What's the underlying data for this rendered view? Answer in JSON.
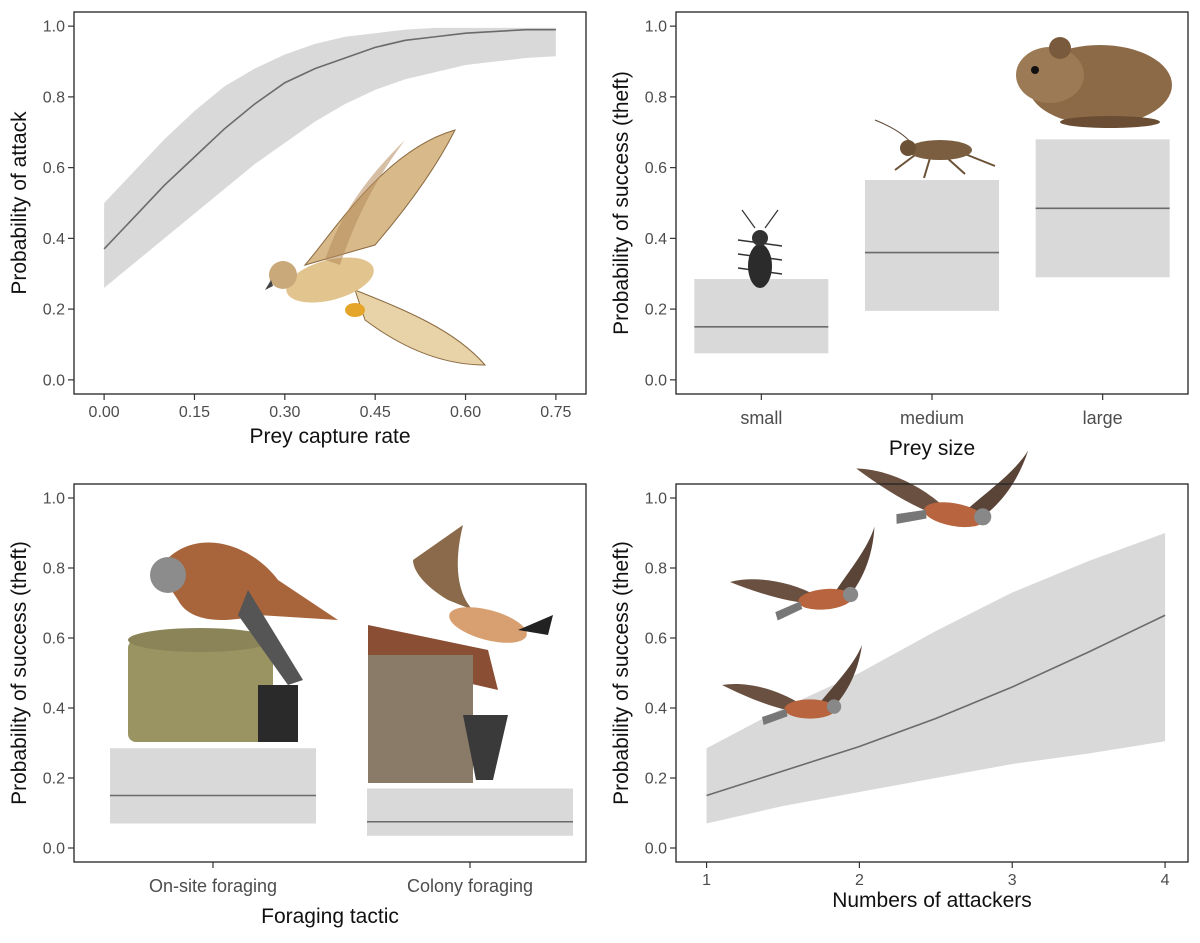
{
  "chart_data": [
    {
      "id": "capture",
      "type": "line",
      "xlabel": "Prey capture rate",
      "ylabel": "Probability of attack",
      "xlim": [
        -0.05,
        0.8
      ],
      "ylim": [
        -0.04,
        1.04
      ],
      "xticks": [
        "0.00",
        "0.15",
        "0.30",
        "0.45",
        "0.60",
        "0.75"
      ],
      "yticks": [
        "0.0",
        "0.2",
        "0.4",
        "0.6",
        "0.8",
        "1.0"
      ],
      "x": [
        0.0,
        0.05,
        0.1,
        0.15,
        0.2,
        0.25,
        0.3,
        0.35,
        0.4,
        0.45,
        0.5,
        0.55,
        0.6,
        0.65,
        0.7,
        0.75
      ],
      "fit": [
        0.37,
        0.46,
        0.55,
        0.63,
        0.71,
        0.78,
        0.84,
        0.88,
        0.91,
        0.94,
        0.96,
        0.97,
        0.98,
        0.985,
        0.99,
        0.99
      ],
      "lower": [
        0.26,
        0.33,
        0.4,
        0.47,
        0.54,
        0.61,
        0.67,
        0.73,
        0.78,
        0.82,
        0.85,
        0.87,
        0.89,
        0.9,
        0.91,
        0.915
      ],
      "upper": [
        0.5,
        0.59,
        0.68,
        0.76,
        0.83,
        0.88,
        0.92,
        0.95,
        0.97,
        0.98,
        0.99,
        0.995,
        0.995,
        0.995,
        0.995,
        0.995
      ],
      "image_icon": "kestrel-hovering-icon"
    },
    {
      "id": "preysize",
      "type": "bar",
      "xlabel": "Prey size",
      "ylabel": "Probability of success (theft)",
      "ylim": [
        -0.04,
        1.04
      ],
      "yticks": [
        "0.0",
        "0.2",
        "0.4",
        "0.6",
        "0.8",
        "1.0"
      ],
      "categories": [
        "small",
        "medium",
        "large"
      ],
      "estimate": [
        0.15,
        0.36,
        0.485
      ],
      "lower": [
        0.075,
        0.195,
        0.29
      ],
      "upper": [
        0.285,
        0.565,
        0.68
      ],
      "image_icons": [
        "beetle-icon",
        "cricket-icon",
        "vole-icon"
      ]
    },
    {
      "id": "tactic",
      "type": "bar",
      "xlabel": "Foraging tactic",
      "ylabel": "Probability of success (theft)",
      "ylim": [
        -0.04,
        1.04
      ],
      "yticks": [
        "0.0",
        "0.2",
        "0.4",
        "0.6",
        "0.8",
        "1.0"
      ],
      "categories": [
        "On-site foraging",
        "Colony foraging"
      ],
      "estimate": [
        0.15,
        0.075
      ],
      "lower": [
        0.07,
        0.035
      ],
      "upper": [
        0.285,
        0.17
      ],
      "image_icons": [
        "kestrel-on-post-icon",
        "kestrel-over-roof-icon"
      ]
    },
    {
      "id": "attackers",
      "type": "line",
      "xlabel": "Numbers of attackers",
      "ylabel": "Probability of success (theft)",
      "xlim": [
        0.8,
        4.15
      ],
      "ylim": [
        -0.04,
        1.04
      ],
      "xticks": [
        "1",
        "2",
        "3",
        "4"
      ],
      "yticks": [
        "0.0",
        "0.2",
        "0.4",
        "0.6",
        "0.8",
        "1.0"
      ],
      "x": [
        1.0,
        1.5,
        2.0,
        2.5,
        3.0,
        3.5,
        4.0
      ],
      "fit": [
        0.15,
        0.22,
        0.29,
        0.37,
        0.46,
        0.56,
        0.665
      ],
      "lower": [
        0.07,
        0.12,
        0.16,
        0.2,
        0.24,
        0.27,
        0.305
      ],
      "upper": [
        0.285,
        0.4,
        0.5,
        0.62,
        0.73,
        0.82,
        0.9
      ],
      "image_icons": [
        "kestrel-flying-icon",
        "kestrel-flying-icon",
        "kestrel-flying-icon"
      ]
    }
  ]
}
